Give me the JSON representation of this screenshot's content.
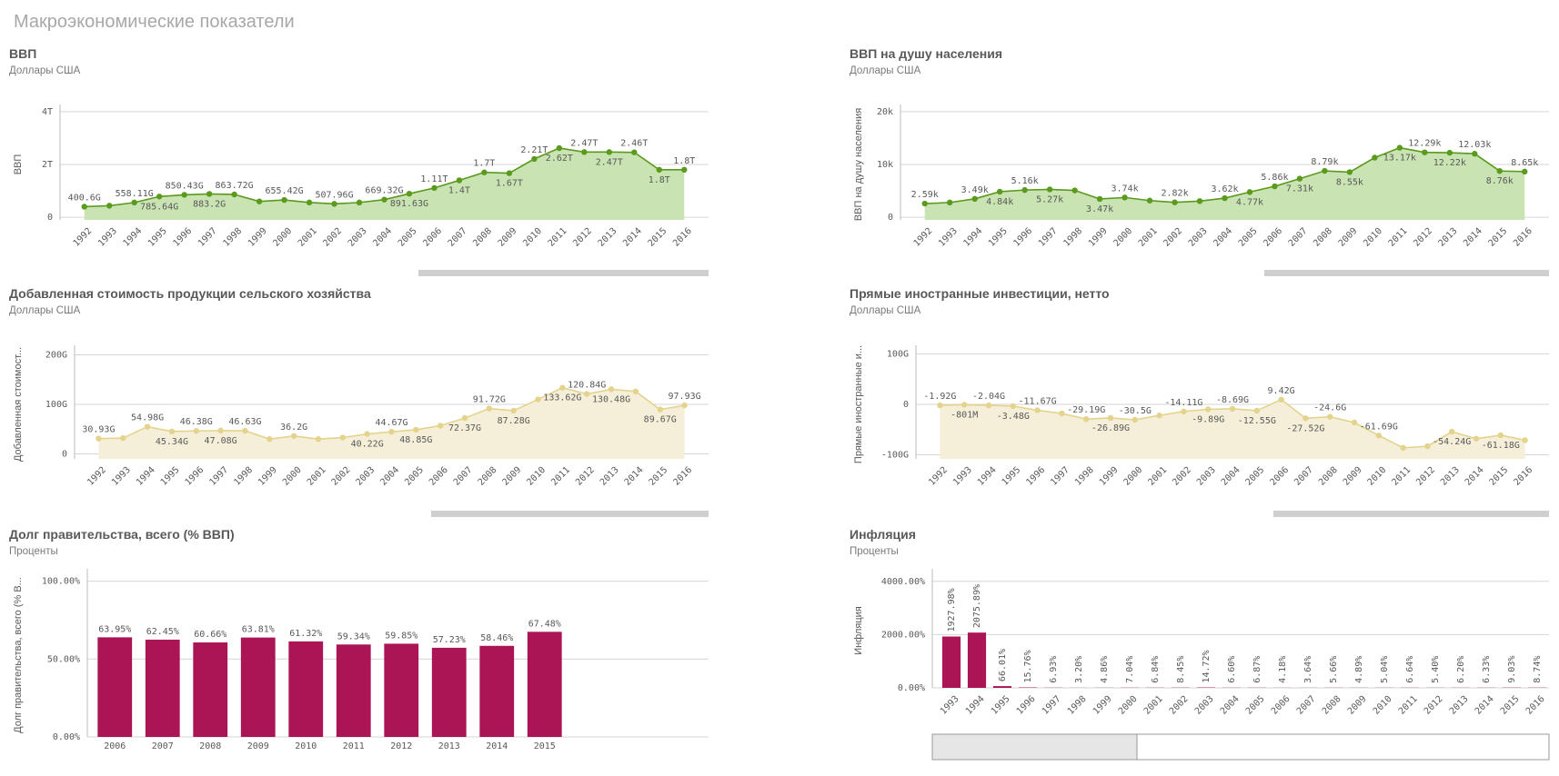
{
  "title": "Макроэкономические показатели",
  "chart_data": [
    {
      "type": "line",
      "title": "ВВП",
      "subtitle": "Доллары США",
      "y_label": "ВВП",
      "color": "#5a9a1c",
      "fill_color": "#c9e3b3",
      "grid": true,
      "categories": [
        "1992",
        "1993",
        "1994",
        "1995",
        "1996",
        "1997",
        "1998",
        "1999",
        "2000",
        "2001",
        "2002",
        "2003",
        "2004",
        "2005",
        "2006",
        "2007",
        "2008",
        "2009",
        "2010",
        "2011",
        "2012",
        "2013",
        "2014",
        "2015",
        "2016"
      ],
      "values": [
        400600000000.0,
        437800000000.0,
        558110000000.0,
        785640000000.0,
        850430000000.0,
        883200000000.0,
        863720000000.0,
        599600000000.0,
        655420000000.0,
        559400000000.0,
        507960000000.0,
        558300000000.0,
        669320000000.0,
        891630000000.0,
        1110000000000.0,
        1400000000000.0,
        1700000000000.0,
        1670000000000.0,
        2210000000000.0,
        2620000000000.0,
        2470000000000.0,
        2470000000000.0,
        2460000000000.0,
        1800000000000.0,
        1800000000000.0
      ],
      "value_labels": [
        "400.6G",
        null,
        "558.11G",
        "785.64G",
        "850.43G",
        "883.2G",
        "863.72G",
        null,
        "655.42G",
        null,
        "507.96G",
        null,
        "669.32G",
        "891.63G",
        "1.11T",
        "1.4T",
        "1.7T",
        "1.67T",
        "2.21T",
        "2.62T",
        "2.47T",
        "2.47T",
        "2.46T",
        "1.8T",
        "1.8T"
      ],
      "ylim": [
        -100000000000.0,
        4100000000000.0
      ],
      "yticks": [
        0,
        {
          "value": 2000000000000.0,
          "label": "2T"
        },
        {
          "value": 4000000000000.0,
          "label": "4T"
        }
      ]
    },
    {
      "type": "line",
      "title": "ВВП на душу населения",
      "subtitle": "Доллары США",
      "y_label": "ВВП на душу населения",
      "color": "#5a9a1c",
      "fill_color": "#c9e3b3",
      "grid": true,
      "categories": [
        "1992",
        "1993",
        "1994",
        "1995",
        "1996",
        "1997",
        "1998",
        "1999",
        "2000",
        "2001",
        "2002",
        "2003",
        "2004",
        "2005",
        "2006",
        "2007",
        "2008",
        "2009",
        "2010",
        "2011",
        "2012",
        "2013",
        "2014",
        "2015",
        "2016"
      ],
      "values": [
        2590,
        2790,
        3490,
        4840,
        5160,
        5270,
        5090,
        3470,
        3740,
        3160,
        2820,
        3060,
        3620,
        4770,
        5860,
        7310,
        8790,
        8550,
        11290,
        13170,
        12290,
        12220,
        12030,
        8760,
        8650
      ],
      "value_labels": [
        "2.59k",
        null,
        "3.49k",
        "4.84k",
        "5.16k",
        "5.27k",
        null,
        "3.47k",
        "3.74k",
        null,
        "2.82k",
        null,
        "3.62k",
        "4.77k",
        "5.86k",
        "7.31k",
        "8.79k",
        "8.55k",
        null,
        "13.17k",
        "12.29k",
        "12.22k",
        "12.03k",
        "8.76k",
        "8.65k"
      ],
      "ylim": [
        -500,
        20500
      ],
      "yticks": [
        0,
        {
          "value": 10000,
          "label": "10k"
        },
        {
          "value": 20000,
          "label": "20k"
        }
      ]
    },
    {
      "type": "line",
      "title": "Добавленная стоимость продукции сельского хозяйства",
      "subtitle": "Доллары США",
      "y_label": "Добавленная стоимост...",
      "color": "#e3d38c",
      "fill_color": "#f5efd9",
      "grid": true,
      "categories": [
        "1992",
        "1993",
        "1994",
        "1995",
        "1996",
        "1997",
        "1998",
        "1999",
        "2000",
        "2001",
        "2002",
        "2003",
        "2004",
        "2005",
        "2006",
        "2007",
        "2008",
        "2009",
        "2010",
        "2011",
        "2012",
        "2013",
        "2014",
        "2015",
        "2016"
      ],
      "values": [
        30930000000.0,
        32000000000.0,
        54980000000.0,
        45340000000.0,
        46380000000.0,
        47080000000.0,
        46630000000.0,
        30000000000.0,
        36200000000.0,
        30000000000.0,
        33000000000.0,
        40220000000.0,
        44670000000.0,
        48850000000.0,
        57000000000.0,
        72370000000.0,
        91720000000.0,
        87280000000.0,
        110000000000.0,
        133620000000.0,
        120840000000.0,
        130480000000.0,
        126000000000.0,
        89670000000.0,
        97930000000.0
      ],
      "value_labels": [
        "30.93G",
        null,
        "54.98G",
        "45.34G",
        "46.38G",
        "47.08G",
        "46.63G",
        null,
        "36.2G",
        null,
        null,
        "40.22G",
        "44.67G",
        "48.85G",
        null,
        "72.37G",
        "91.72G",
        "87.28G",
        null,
        "133.62G",
        "120.84G",
        "130.48G",
        null,
        "89.67G",
        "97.93G"
      ],
      "ylim": [
        -10000000000.0,
        210000000000.0
      ],
      "yticks": [
        0,
        {
          "value": 100000000000.0,
          "label": "100G"
        },
        {
          "value": 200000000000.0,
          "label": "200G"
        }
      ]
    },
    {
      "type": "line",
      "title": "Прямые иностранные инвестиции, нетто",
      "subtitle": "Доллары США",
      "y_label": "Прямые иностранные и...",
      "color": "#e3d38c",
      "fill_color": "#f5efd9",
      "grid": true,
      "categories": [
        "1992",
        "1993",
        "1994",
        "1995",
        "1996",
        "1997",
        "1998",
        "1999",
        "2000",
        "2001",
        "2002",
        "2003",
        "2004",
        "2005",
        "2006",
        "2007",
        "2008",
        "2009",
        "2010",
        "2011",
        "2012",
        "2013",
        "2014",
        "2015",
        "2016"
      ],
      "values": [
        -1920000000.0,
        -801000000.0,
        -2040000000.0,
        -3480000000.0,
        -11670000000.0,
        -18000000000.0,
        -29190000000.0,
        -26890000000.0,
        -30500000000.0,
        -22000000000.0,
        -14110000000.0,
        -9890000000.0,
        -8690000000.0,
        -12550000000.0,
        9420000000.0,
        -27520000000.0,
        -24600000000.0,
        -36000000000.0,
        -61690000000.0,
        -86000000000.0,
        -83000000000.0,
        -54240000000.0,
        -68000000000.0,
        -61180000000.0,
        -71000000000.0
      ],
      "value_labels": [
        "-1.92G",
        "-801M",
        "-2.04G",
        "-3.48G",
        "-11.67G",
        null,
        "-29.19G",
        "-26.89G",
        "-30.5G",
        null,
        "-14.11G",
        "-9.89G",
        "-8.69G",
        "-12.55G",
        "9.42G",
        "-27.52G",
        "-24.6G",
        null,
        "-61.69G",
        null,
        null,
        "-54.24G",
        null,
        "-61.18G",
        null
      ],
      "ylim": [
        -108000000000.0,
        108000000000.0
      ],
      "yticks": [
        {
          "value": -100000000000.0,
          "label": "-100G"
        },
        0,
        {
          "value": 100000000000.0,
          "label": "100G"
        }
      ]
    },
    {
      "type": "bar",
      "title": "Долг правительства, всего (% ВВП)",
      "subtitle": "Проценты",
      "y_label": "Долг правительства, всего (% В...",
      "color": "#ab1556",
      "grid": true,
      "categories": [
        "2006",
        "2007",
        "2008",
        "2009",
        "2010",
        "2011",
        "2012",
        "2013",
        "2014",
        "2015"
      ],
      "values": [
        63.95,
        62.45,
        60.66,
        63.81,
        61.32,
        59.34,
        59.85,
        57.23,
        58.46,
        67.48
      ],
      "value_labels": [
        "63.95%",
        "62.45%",
        "60.66%",
        "63.81%",
        "61.32%",
        "59.34%",
        "59.85%",
        "57.23%",
        "58.46%",
        "67.48%"
      ],
      "ylim": [
        0,
        105
      ],
      "yticks": [
        {
          "value": 0,
          "label": "0.00%"
        },
        {
          "value": 50,
          "label": "50.00%"
        },
        {
          "value": 100,
          "label": "100.00%"
        }
      ]
    },
    {
      "type": "bar",
      "title": "Инфляция",
      "subtitle": "Проценты",
      "y_label": "Инфляция",
      "color": "#ab1556",
      "grid": true,
      "categories": [
        "1993",
        "1994",
        "1995",
        "1996",
        "1997",
        "1998",
        "1999",
        "2000",
        "2001",
        "2002",
        "2003",
        "2004",
        "2005",
        "2006",
        "2007",
        "2008",
        "2009",
        "2010",
        "2011",
        "2012",
        "2013",
        "2014",
        "2015",
        "2016"
      ],
      "values": [
        1927.98,
        2075.89,
        66.01,
        15.76,
        6.93,
        3.2,
        4.86,
        7.04,
        6.84,
        8.45,
        14.72,
        6.6,
        6.87,
        4.18,
        3.64,
        5.66,
        4.89,
        5.04,
        6.64,
        5.4,
        6.2,
        6.33,
        9.03,
        8.74
      ],
      "value_labels": [
        "1927.98%",
        "2075.89%",
        "66.01%",
        "15.76%",
        "6.93%",
        "3.20%",
        "4.86%",
        "7.04%",
        "6.84%",
        "8.45%",
        "14.72%",
        "6.60%",
        "6.87%",
        "4.18%",
        "3.64%",
        "5.66%",
        "4.89%",
        "5.04%",
        "6.64%",
        "5.40%",
        "6.20%",
        "6.33%",
        "9.03%",
        "8.74%"
      ],
      "ylim": [
        0,
        4300
      ],
      "yticks": [
        {
          "value": 0,
          "label": "0.00%"
        },
        {
          "value": 2000,
          "label": "2000.00%"
        },
        {
          "value": 4000,
          "label": "4000.00%"
        }
      ]
    }
  ]
}
